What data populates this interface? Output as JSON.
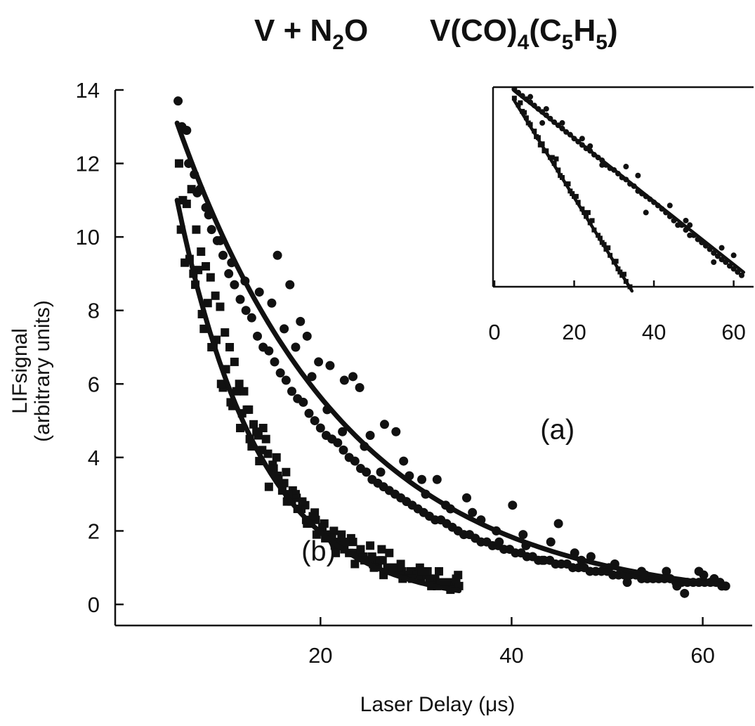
{
  "chart_data": [
    {
      "type": "scatter",
      "title_parts": {
        "reaction": {
          "base": "V + N",
          "sub": "2",
          "tail": "O"
        },
        "precursor": {
          "base": "V(CO)",
          "sub1": "4",
          "mid": "(C",
          "sub2": "5",
          "mid2": "H",
          "sub3": "5",
          "tail": ")"
        }
      },
      "xlabel": "Laser Delay (μs)",
      "ylabel_line1": "LIFsignal",
      "ylabel_line2": "(arbitrary units)",
      "xlim": [
        3,
        64
      ],
      "ylim": [
        -0.5,
        14
      ],
      "xticks": [
        20,
        40,
        60
      ],
      "xtick_labels": [
        "20",
        "40",
        "60"
      ],
      "yticks": [
        0,
        2,
        4,
        6,
        8,
        10,
        12,
        14
      ],
      "ytick_labels": [
        "0",
        "2",
        "4",
        "6",
        "8",
        "10",
        "12",
        "14"
      ],
      "grid": false,
      "annotations": [
        {
          "text": "(a)",
          "x": 43,
          "y": 4.5
        },
        {
          "text": "(b)",
          "x": 18,
          "y": 1.2
        }
      ],
      "series": [
        {
          "marker": "circle",
          "x": [
            5.1,
            5.5,
            6.2,
            6.8,
            7.4,
            8.0,
            8.6,
            9.2,
            9.8,
            10.4,
            11.0,
            11.6,
            12.2,
            12.8,
            13.4,
            14.0,
            14.6,
            15.2,
            15.8,
            16.4,
            17.0,
            17.6,
            18.2,
            18.8,
            19.4,
            20.0,
            20.6,
            21.2,
            21.8,
            22.4,
            23.0,
            23.6,
            24.2,
            24.8,
            25.4,
            26.0,
            26.6,
            27.2,
            27.8,
            28.4,
            29.0,
            29.6,
            30.2,
            30.8,
            31.4,
            32.0,
            32.6,
            33.2,
            33.8,
            34.4,
            35.0,
            35.6,
            36.2,
            36.8,
            37.4,
            38.0,
            38.6,
            39.2,
            39.8,
            40.4,
            41.0,
            41.6,
            42.2,
            42.8,
            43.4,
            44.0,
            44.6,
            45.2,
            45.8,
            46.4,
            47.0,
            47.6,
            48.2,
            48.8,
            49.4,
            50.0,
            50.6,
            51.2,
            51.8,
            52.4,
            53.0,
            53.6,
            54.2,
            54.8,
            55.4,
            56.0,
            56.6,
            57.2,
            57.8,
            58.4,
            59.0,
            59.6,
            60.2,
            60.8,
            61.4,
            62.0,
            62.4,
            15.5,
            16.8,
            17.9,
            18.6,
            19.8,
            21.0,
            22.5,
            23.4,
            24.1,
            25.2,
            26.7,
            27.9,
            29.3,
            30.6,
            32.2,
            33.6,
            35.3,
            36.8,
            38.4,
            40.1,
            41.5,
            43.2,
            44.9,
            46.6,
            48.3,
            50.2,
            52.1,
            54.0,
            56.2,
            58.1,
            60.1,
            61.8,
            6.0,
            7.1,
            8.3,
            9.5,
            10.7,
            12.1,
            13.6,
            14.9,
            16.2,
            17.4,
            19.1,
            20.7,
            22.3,
            24.6,
            26.3,
            28.7,
            31.0,
            33.1,
            35.9,
            38.7,
            41.2,
            44.1,
            47.3,
            50.8,
            53.6,
            57.3,
            59.6,
            61.2
          ],
          "y": [
            13.7,
            13.0,
            12.0,
            11.7,
            11.3,
            10.8,
            10.2,
            9.9,
            9.5,
            9.0,
            8.7,
            8.3,
            8.0,
            7.8,
            7.3,
            7.0,
            6.9,
            6.6,
            6.3,
            6.1,
            5.8,
            5.6,
            5.5,
            5.2,
            5.0,
            4.8,
            4.6,
            4.5,
            4.4,
            4.2,
            4.0,
            3.9,
            3.7,
            3.6,
            3.4,
            3.3,
            3.2,
            3.1,
            3.0,
            2.9,
            2.8,
            2.7,
            2.6,
            2.5,
            2.4,
            2.3,
            2.3,
            2.2,
            2.1,
            2.0,
            1.9,
            1.9,
            1.8,
            1.7,
            1.7,
            1.6,
            1.6,
            1.5,
            1.5,
            1.4,
            1.4,
            1.3,
            1.3,
            1.2,
            1.2,
            1.2,
            1.1,
            1.1,
            1.1,
            1.0,
            1.0,
            1.0,
            0.9,
            0.9,
            0.9,
            0.9,
            0.8,
            0.8,
            0.8,
            0.8,
            0.8,
            0.7,
            0.7,
            0.7,
            0.7,
            0.7,
            0.7,
            0.6,
            0.6,
            0.6,
            0.6,
            0.6,
            0.6,
            0.6,
            0.6,
            0.5,
            0.5,
            9.5,
            8.7,
            7.7,
            7.3,
            6.6,
            6.5,
            6.1,
            6.2,
            5.9,
            4.6,
            4.9,
            4.7,
            3.5,
            3.4,
            3.4,
            2.6,
            2.9,
            2.3,
            2.0,
            2.7,
            1.6,
            1.2,
            2.2,
            1.4,
            1.3,
            1.0,
            0.6,
            0.8,
            0.9,
            0.3,
            0.8,
            0.6,
            12.9,
            11.2,
            10.6,
            9.9,
            9.3,
            8.8,
            8.5,
            8.2,
            7.5,
            7.0,
            6.2,
            5.3,
            4.7,
            4.3,
            3.6,
            3.9,
            3.0,
            2.7,
            2.5,
            1.7,
            1.9,
            1.7,
            1.2,
            1.1,
            0.9,
            0.5,
            0.9,
            0.7
          ]
        },
        {
          "marker": "square",
          "x": [
            5.2,
            5.6,
            6.0,
            6.5,
            7.0,
            7.5,
            8.0,
            8.5,
            9.0,
            9.5,
            10.0,
            10.5,
            11.0,
            11.5,
            12.0,
            12.5,
            13.0,
            13.5,
            14.0,
            14.5,
            15.0,
            15.5,
            16.0,
            16.5,
            17.0,
            17.5,
            18.0,
            18.5,
            19.0,
            19.5,
            20.0,
            20.5,
            21.0,
            21.5,
            22.0,
            22.5,
            23.0,
            23.5,
            24.0,
            24.5,
            25.0,
            25.5,
            26.0,
            26.5,
            27.0,
            27.5,
            28.0,
            28.5,
            29.0,
            29.5,
            30.0,
            30.5,
            31.0,
            31.5,
            32.0,
            32.5,
            33.0,
            33.5,
            34.0,
            34.5,
            5.4,
            6.3,
            7.2,
            8.2,
            9.1,
            10.1,
            11.2,
            12.3,
            13.3,
            14.3,
            15.4,
            16.4,
            17.4,
            18.4,
            19.4,
            20.4,
            21.4,
            22.4,
            23.4,
            24.4,
            25.4,
            26.4,
            27.4,
            28.4,
            29.4,
            30.4,
            31.4,
            32.4,
            33.4,
            34.4,
            5.8,
            6.9,
            7.8,
            8.8,
            9.8,
            10.8,
            11.8,
            12.8,
            13.9,
            15.1,
            16.2,
            17.1,
            18.1,
            19.2,
            20.2,
            21.2,
            22.2,
            23.2,
            24.2,
            25.2,
            26.2,
            27.2,
            28.2,
            29.2,
            30.2,
            31.2,
            32.2,
            33.2,
            34.2,
            6.7,
            7.6,
            8.6,
            9.6,
            10.6,
            11.6,
            12.6,
            13.6,
            14.6,
            15.6,
            16.6,
            17.6,
            18.6,
            19.6,
            20.6,
            21.6,
            22.6,
            23.6,
            24.6,
            25.6,
            26.6,
            27.6,
            28.6,
            29.6,
            30.6,
            31.6,
            32.6,
            33.6
          ],
          "y": [
            12.0,
            11.0,
            10.9,
            11.3,
            10.2,
            9.6,
            9.2,
            8.9,
            8.4,
            8.1,
            7.4,
            7.0,
            6.6,
            6.0,
            5.8,
            5.3,
            4.9,
            4.6,
            4.8,
            4.1,
            3.8,
            3.5,
            3.1,
            2.8,
            2.8,
            2.9,
            2.6,
            2.3,
            2.2,
            2.3,
            2.0,
            1.8,
            1.9,
            1.6,
            1.7,
            1.5,
            1.4,
            1.4,
            1.3,
            1.3,
            1.2,
            1.1,
            1.1,
            1.2,
            1.0,
            1.0,
            0.9,
            0.9,
            0.8,
            0.8,
            0.9,
            0.7,
            0.8,
            0.7,
            0.7,
            0.6,
            0.6,
            0.6,
            0.5,
            0.5,
            10.2,
            9.4,
            9.1,
            8.2,
            7.2,
            6.4,
            5.8,
            5.3,
            4.7,
            4.5,
            4.0,
            3.6,
            3.0,
            2.7,
            2.5,
            2.2,
            2.0,
            1.6,
            1.7,
            1.3,
            1.3,
            1.5,
            1.0,
            1.1,
            0.9,
            1.0,
            0.7,
            0.9,
            0.6,
            0.8,
            9.3,
            8.7,
            7.5,
            7.0,
            5.9,
            5.4,
            5.2,
            4.3,
            4.2,
            3.7,
            3.3,
            3.1,
            2.8,
            2.4,
            2.1,
            1.8,
            1.9,
            1.8,
            1.5,
            1.6,
            1.2,
            1.4,
            1.0,
            0.8,
            0.8,
            0.9,
            0.5,
            0.6,
            0.7,
            9.0,
            7.9,
            7.0,
            6.0,
            5.5,
            4.8,
            4.5,
            3.9,
            3.2,
            3.4,
            3.0,
            2.6,
            2.2,
            1.9,
            1.9,
            1.4,
            1.7,
            1.1,
            1.2,
            1.0,
            0.8,
            1.0,
            0.7,
            0.7,
            0.9,
            0.5,
            0.6,
            0.4
          ]
        }
      ],
      "fits": [
        {
          "x0": 5.0,
          "x1": 62.5,
          "A": 13.1,
          "tau": 17.8
        },
        {
          "x0": 5.0,
          "x1": 34.5,
          "A": 11.0,
          "tau": 8.7
        }
      ]
    },
    {
      "type": "scatter",
      "scale": "log-y",
      "xlim": [
        0,
        65
      ],
      "xticks": [
        0,
        20,
        40,
        60
      ],
      "xtick_labels": [
        "0",
        "20",
        "40",
        "60"
      ],
      "grid": false,
      "series": [
        {
          "marker": "circle",
          "x": [
            5,
            6,
            7,
            8,
            9,
            10,
            11,
            12,
            13,
            14,
            15,
            16,
            17,
            18,
            19,
            20,
            21,
            22,
            23,
            24,
            25,
            26,
            27,
            28,
            29,
            30,
            31,
            32,
            33,
            34,
            35,
            36,
            37,
            38,
            39,
            40,
            41,
            42,
            43,
            44,
            45,
            46,
            47,
            48,
            49,
            50,
            51,
            52,
            53,
            54,
            55,
            56,
            57,
            58,
            59,
            60,
            61,
            62,
            9,
            13,
            17,
            22,
            27,
            33,
            38,
            44,
            49,
            55,
            60,
            12,
            24,
            36,
            48,
            57
          ],
          "y": [
            13.5,
            12.7,
            12.0,
            11.3,
            10.7,
            10.1,
            9.5,
            9.0,
            8.5,
            8.0,
            7.5,
            7.1,
            6.7,
            6.3,
            6.0,
            5.6,
            5.3,
            5.0,
            4.7,
            4.5,
            4.2,
            4.0,
            3.8,
            3.5,
            3.3,
            3.2,
            3.0,
            2.8,
            2.7,
            2.5,
            2.4,
            2.2,
            2.1,
            2.0,
            1.9,
            1.8,
            1.7,
            1.6,
            1.5,
            1.4,
            1.3,
            1.2,
            1.2,
            1.1,
            1.0,
            1.0,
            0.93,
            0.88,
            0.83,
            0.78,
            0.73,
            0.69,
            0.65,
            0.62,
            0.58,
            0.55,
            0.52,
            0.49,
            11.8,
            9.5,
            7.4,
            5.6,
            3.5,
            3.4,
            1.5,
            1.7,
            1.2,
            0.62,
            0.7,
            7.4,
            4.9,
            2.9,
            1.3,
            0.8
          ]
        },
        {
          "marker": "square",
          "x": [
            5,
            6,
            7,
            8,
            9,
            10,
            11,
            12,
            13,
            14,
            15,
            16,
            17,
            18,
            19,
            20,
            21,
            22,
            23,
            24,
            25,
            26,
            27,
            28,
            29,
            30,
            31,
            32,
            33,
            34,
            6.5,
            8.5,
            10.5,
            12.5,
            14.5,
            16.5,
            18.5,
            20.5,
            22.5,
            24.5,
            26.5,
            28.5,
            30.5,
            32.5,
            7.5,
            11.5,
            15.5,
            19.5,
            23.5,
            27.5,
            31.5
          ],
          "y": [
            11.5,
            10.2,
            9.1,
            8.1,
            7.2,
            6.4,
            5.7,
            5.1,
            4.5,
            4.0,
            3.6,
            3.2,
            2.8,
            2.5,
            2.2,
            2.0,
            1.8,
            1.6,
            1.4,
            1.25,
            1.1,
            1.0,
            0.88,
            0.78,
            0.7,
            0.62,
            0.55,
            0.49,
            0.44,
            0.4,
            10.6,
            7.4,
            5.8,
            4.5,
            4.0,
            2.9,
            2.5,
            2.0,
            1.5,
            1.3,
            0.95,
            0.8,
            0.63,
            0.5,
            8.9,
            5.0,
            3.9,
            2.1,
            1.5,
            0.85,
            0.52
          ]
        }
      ],
      "fits": [
        {
          "x0": 5.0,
          "x1": 62.5,
          "A": 13.1,
          "tau": 17.8
        },
        {
          "x0": 5.0,
          "x1": 34.5,
          "A": 11.0,
          "tau": 8.7
        }
      ]
    }
  ]
}
